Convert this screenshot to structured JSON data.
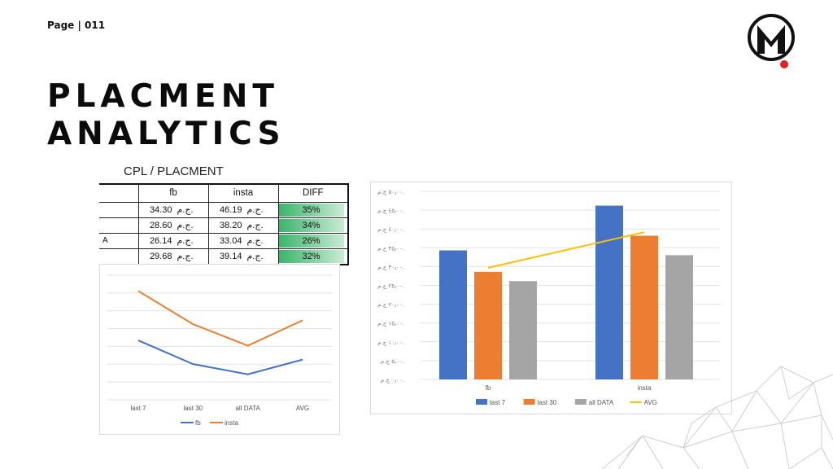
{
  "page": {
    "label": "Page | 011"
  },
  "title": {
    "line1": "PLACMENT",
    "line2": "ANALYTICS"
  },
  "colors": {
    "fb": "#4472c4",
    "insta": "#ed7d31",
    "all_data": "#a5a5a5",
    "avg": "#ffc000",
    "diff_green": "#39b56a",
    "logo_dot": "#e31e24"
  },
  "table": {
    "title": "CPL / PLACMENT",
    "headers": [
      "",
      "fb",
      "insta",
      "DIFF"
    ],
    "currency": "ج.م.",
    "rows": [
      {
        "label": "",
        "fb": "34.30",
        "insta": "46.19",
        "diff": "35%"
      },
      {
        "label": "",
        "fb": "28.60",
        "insta": "38.20",
        "diff": "34%"
      },
      {
        "label": "A",
        "fb": "26.14",
        "insta": "33.04",
        "diff": "26%"
      },
      {
        "label": "",
        "fb": "29.68",
        "insta": "39.14",
        "diff": "32%"
      }
    ]
  },
  "chart_data": [
    {
      "type": "line",
      "categories": [
        "last 7",
        "last 30",
        "all DATA",
        "AVG"
      ],
      "series": [
        {
          "name": "fb",
          "values": [
            34.3,
            28.6,
            26.14,
            29.68
          ]
        },
        {
          "name": "insta",
          "values": [
            46.19,
            38.2,
            33.04,
            39.14
          ]
        }
      ],
      "ylim": [
        20,
        50
      ],
      "grid": true,
      "legend": "bottom"
    },
    {
      "type": "bar",
      "categories": [
        "fb",
        "insta"
      ],
      "series": [
        {
          "name": "last 7",
          "values": [
            34.3,
            46.19
          ]
        },
        {
          "name": "last 30",
          "values": [
            28.6,
            38.2
          ]
        },
        {
          "name": "all DATA",
          "values": [
            26.14,
            33.04
          ]
        },
        {
          "name": "AVG",
          "type": "line",
          "values": [
            29.68,
            39.14
          ]
        }
      ],
      "ylim": [
        0,
        50
      ],
      "yticks": [
        "٠٫٠٠ ج.م.",
        "٥٫٠٠ ج.م.",
        "١٠٫٠٠ ج.م.",
        "١٥٫٠٠ ج.م.",
        "٢٠٫٠٠ ج.م.",
        "٢٥٫٠٠ ج.م.",
        "٣٠٫٠٠ ج.م.",
        "٣٥٫٠٠ ج.م.",
        "٤٠٫٠٠ ج.م.",
        "٤٥٫٠٠ ج.م.",
        "٥٠٫٠٠ ج.م."
      ],
      "grid": true,
      "legend": "bottom"
    }
  ]
}
